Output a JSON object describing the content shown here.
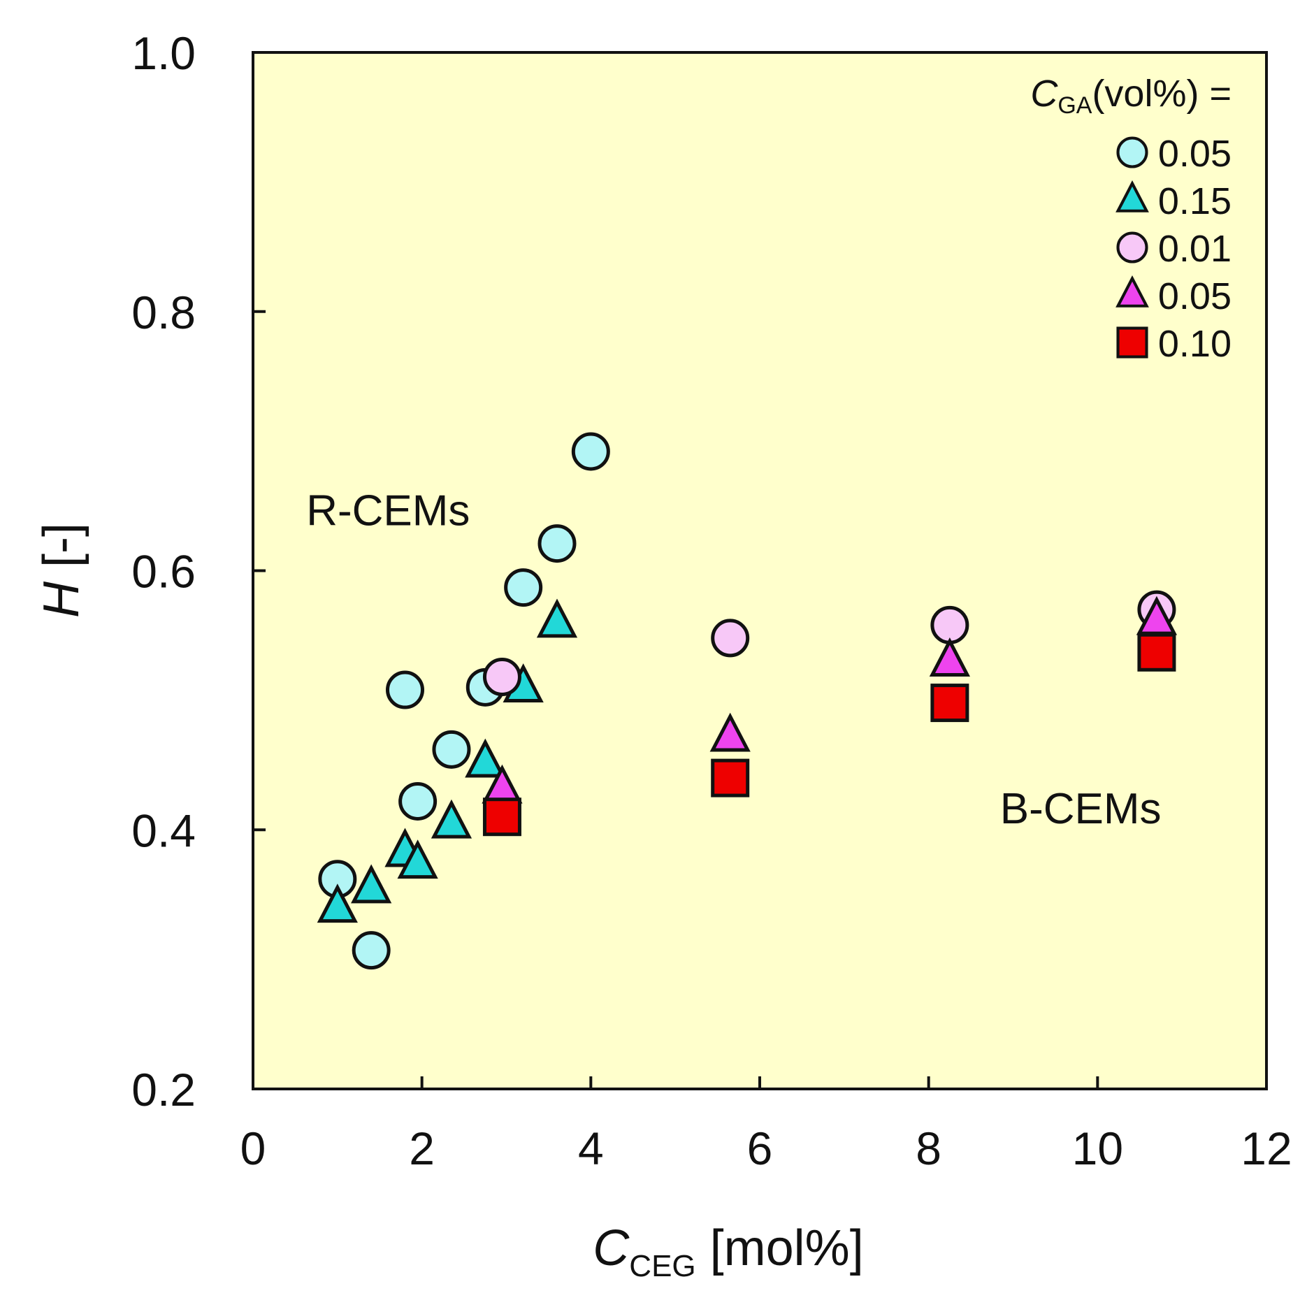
{
  "chart_data": {
    "type": "scatter",
    "xlabel": {
      "main": "C",
      "sub": "CEG",
      "unit": " [mol%]"
    },
    "ylabel": {
      "main": "H",
      "unit": " [-]"
    },
    "xlim": [
      0,
      12
    ],
    "ylim": [
      0.2,
      1.0
    ],
    "xticks": [
      "0",
      "2",
      "4",
      "6",
      "8",
      "10",
      "12"
    ],
    "yticks": [
      "0.2",
      "0.4",
      "0.6",
      "0.8",
      "1.0"
    ],
    "xtick_values": [
      0,
      2,
      4,
      6,
      8,
      10,
      12
    ],
    "ytick_values": [
      0.2,
      0.4,
      0.6,
      0.8,
      1.0
    ],
    "grid": false,
    "background": "#ffffcc",
    "legend": {
      "title_main": "C",
      "title_sub": "GA",
      "title_rest": "(vol%)  =",
      "placement": "top-right"
    },
    "annotations": [
      {
        "text": "R-CEMs",
        "x": 1.6,
        "y": 0.635
      },
      {
        "text": "B-CEMs",
        "x": 9.8,
        "y": 0.405
      }
    ],
    "series": [
      {
        "name": "0.05",
        "marker": "circle",
        "color": "#b2f5f5",
        "points": [
          {
            "x": 1.0,
            "y": 0.362
          },
          {
            "x": 1.4,
            "y": 0.307
          },
          {
            "x": 1.8,
            "y": 0.508
          },
          {
            "x": 1.95,
            "y": 0.422
          },
          {
            "x": 2.35,
            "y": 0.462
          },
          {
            "x": 2.75,
            "y": 0.51
          },
          {
            "x": 3.2,
            "y": 0.587
          },
          {
            "x": 3.6,
            "y": 0.621
          },
          {
            "x": 4.0,
            "y": 0.692
          }
        ]
      },
      {
        "name": "0.15",
        "marker": "triangle",
        "color": "#22d8d8",
        "points": [
          {
            "x": 1.0,
            "y": 0.34
          },
          {
            "x": 1.4,
            "y": 0.355
          },
          {
            "x": 1.8,
            "y": 0.383
          },
          {
            "x": 1.95,
            "y": 0.374
          },
          {
            "x": 2.35,
            "y": 0.405
          },
          {
            "x": 2.75,
            "y": 0.452
          },
          {
            "x": 3.2,
            "y": 0.51
          },
          {
            "x": 3.6,
            "y": 0.56
          }
        ]
      },
      {
        "name": "0.01",
        "marker": "circle",
        "color": "#f7c8f7",
        "points": [
          {
            "x": 2.95,
            "y": 0.518
          },
          {
            "x": 5.65,
            "y": 0.548
          },
          {
            "x": 8.25,
            "y": 0.558
          },
          {
            "x": 10.7,
            "y": 0.57
          }
        ]
      },
      {
        "name": "0.05",
        "marker": "triangle",
        "color": "#ee44ee",
        "points": [
          {
            "x": 2.95,
            "y": 0.432
          },
          {
            "x": 5.65,
            "y": 0.472
          },
          {
            "x": 8.25,
            "y": 0.53
          },
          {
            "x": 10.7,
            "y": 0.562
          }
        ]
      },
      {
        "name": "0.10",
        "marker": "square",
        "color": "#ee0000",
        "points": [
          {
            "x": 2.95,
            "y": 0.41
          },
          {
            "x": 5.65,
            "y": 0.44
          },
          {
            "x": 8.25,
            "y": 0.498
          },
          {
            "x": 10.7,
            "y": 0.537
          }
        ]
      }
    ]
  }
}
